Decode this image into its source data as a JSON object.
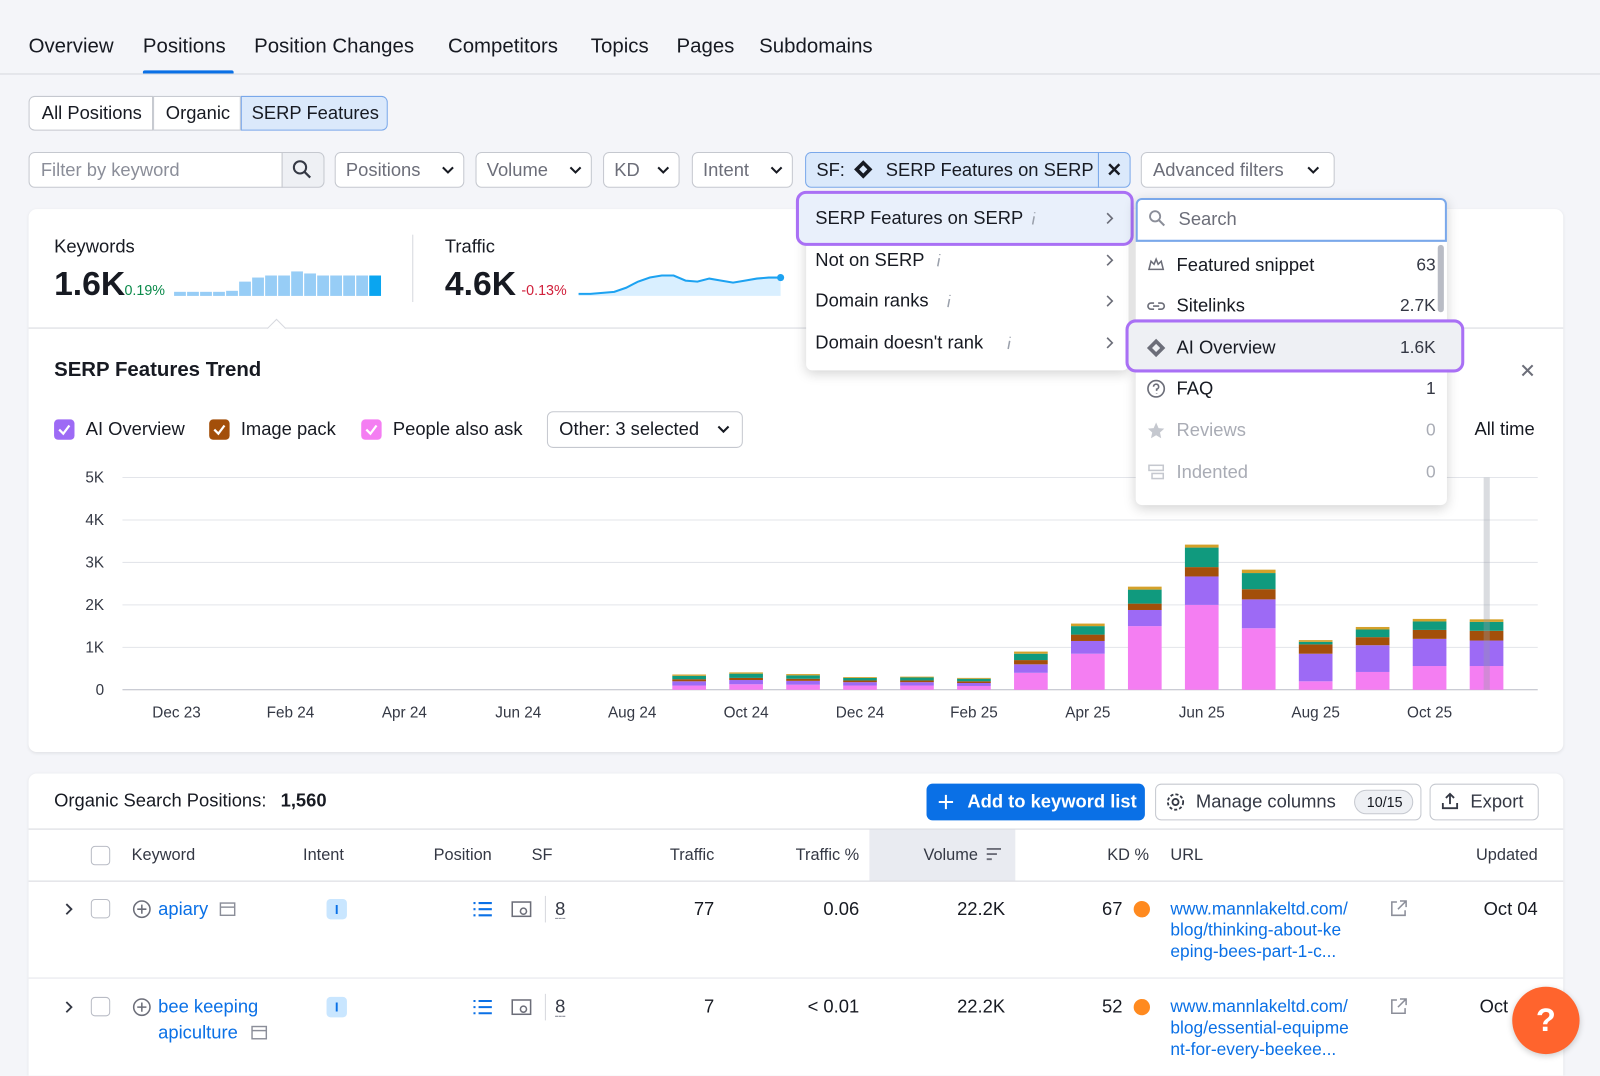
{
  "nav_tabs": [
    "Overview",
    "Positions",
    "Position Changes",
    "Competitors",
    "Topics",
    "Pages",
    "Subdomains"
  ],
  "sub_tabs": [
    "All Positions",
    "Organic",
    "SERP Features"
  ],
  "filters": {
    "keyword_placeholder": "Filter by keyword",
    "dropdowns": [
      "Positions",
      "Volume",
      "KD",
      "Intent"
    ],
    "sf_prefix": "SF:",
    "sf_value": "SERP Features on SERP",
    "advanced": "Advanced filters"
  },
  "summary": {
    "keywords": {
      "label": "Keywords",
      "value": "1.6K",
      "change": "0.19%",
      "sparkline": [
        4,
        4,
        4,
        4,
        5,
        14,
        18,
        20,
        20,
        24,
        22,
        20,
        20,
        20,
        20,
        20
      ]
    },
    "traffic": {
      "label": "Traffic",
      "value": "4.6K",
      "change": "-0.13%",
      "sparkline": [
        2,
        2,
        3,
        4,
        8,
        14,
        18,
        20,
        20,
        15,
        14,
        17,
        15,
        13,
        15,
        17,
        18,
        18
      ]
    }
  },
  "sf_menu": [
    "SERP Features on SERP",
    "Not on SERP",
    "Domain ranks",
    "Domain doesn't rank"
  ],
  "feature_menu": {
    "search_placeholder": "Search",
    "items": [
      {
        "label": "Featured snippet",
        "count": "63"
      },
      {
        "label": "Sitelinks",
        "count": "2.7K"
      },
      {
        "label": "AI Overview",
        "count": "1.6K"
      },
      {
        "label": "FAQ",
        "count": "1"
      },
      {
        "label": "Reviews",
        "count": "0"
      },
      {
        "label": "Indented",
        "count": "0"
      }
    ]
  },
  "chart_controls": {
    "other": "Other: 3 selected",
    "range": "All time"
  },
  "chart_data": {
    "type": "bar",
    "stacked": true,
    "title": "SERP Features Trend",
    "categories": [
      "Dec 23",
      null,
      "Feb 24",
      null,
      "Apr 24",
      null,
      "Jun 24",
      null,
      "Aug 24",
      null,
      "Oct 24",
      null,
      "Dec 24",
      null,
      "Feb 25",
      null,
      "Apr 25",
      null,
      "Jun 25",
      null,
      "Aug 25",
      null,
      "Oct 25",
      null
    ],
    "series": [
      {
        "name": "People also ask",
        "color": "#f47ef2",
        "values": [
          null,
          null,
          null,
          null,
          null,
          null,
          null,
          null,
          null,
          100,
          130,
          120,
          100,
          100,
          90,
          400,
          850,
          1500,
          2000,
          1450,
          200,
          420,
          560,
          560
        ]
      },
      {
        "name": "AI Overview",
        "color": "#9d6af5",
        "values": [
          null,
          null,
          null,
          null,
          null,
          null,
          null,
          null,
          null,
          100,
          100,
          90,
          80,
          80,
          70,
          200,
          300,
          380,
          670,
          680,
          650,
          630,
          640,
          600
        ]
      },
      {
        "name": "Image pack",
        "color": "#a34f0a",
        "values": [
          null,
          null,
          null,
          null,
          null,
          null,
          null,
          null,
          null,
          50,
          50,
          50,
          40,
          40,
          40,
          100,
          150,
          150,
          220,
          240,
          220,
          190,
          210,
          230
        ]
      },
      {
        "color": "#109a7e",
        "values": [
          null,
          null,
          null,
          null,
          null,
          null,
          null,
          null,
          null,
          80,
          100,
          80,
          60,
          70,
          60,
          150,
          200,
          330,
          460,
          380,
          60,
          180,
          200,
          210
        ]
      },
      {
        "color": "#d4a12a",
        "values": [
          null,
          null,
          null,
          null,
          null,
          null,
          null,
          null,
          null,
          30,
          30,
          30,
          20,
          20,
          20,
          50,
          60,
          70,
          70,
          80,
          40,
          60,
          60,
          60
        ]
      }
    ],
    "ylim": [
      0,
      5000
    ],
    "yticks": [
      0,
      {
        "value": 1000,
        "label": "1K"
      },
      {
        "value": 2000,
        "label": "2K"
      },
      {
        "value": 3000,
        "label": "3K"
      },
      {
        "value": 4000,
        "label": "4K"
      },
      {
        "value": 5000,
        "label": "5K"
      }
    ],
    "grid": true
  },
  "table": {
    "title": "Organic Search Positions:",
    "count": "1,560",
    "buttons": {
      "add": "Add to keyword list",
      "manage": "Manage columns",
      "columns": "10/15",
      "export": "Export"
    },
    "columns": [
      "Keyword",
      "Intent",
      "Position",
      "SF",
      "Traffic",
      "Traffic %",
      "Volume",
      "KD %",
      "URL",
      "Updated"
    ],
    "rows": [
      {
        "keyword": [
          "apiary"
        ],
        "intent": "I",
        "sf": "8",
        "traffic": "77",
        "traffic_pct": "0.06",
        "volume": "22.2K",
        "kd": "67",
        "url": [
          "www.mannlakeltd.com/",
          "blog/thinking-about-ke",
          "eping-bees-part-1-c..."
        ],
        "updated": "Oct 04"
      },
      {
        "keyword": [
          "bee keeping",
          "apiculture"
        ],
        "intent": "I",
        "sf": "8",
        "traffic": "7",
        "traffic_pct": "< 0.01",
        "volume": "22.2K",
        "kd": "52",
        "url": [
          "www.mannlakeltd.com/",
          "blog/essential-equipme",
          "nt-for-every-beekee..."
        ],
        "updated": "Oct"
      }
    ]
  },
  "help": "?"
}
